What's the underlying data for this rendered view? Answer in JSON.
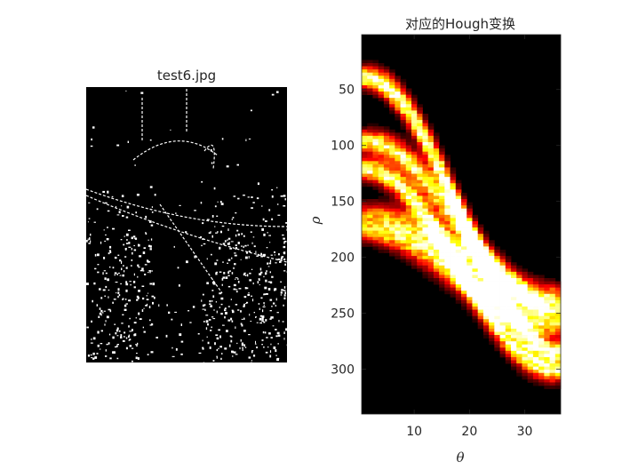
{
  "chart_data": [
    {
      "type": "image",
      "title": "test6.jpg",
      "description_values": {
        "style": "binary edge map",
        "colors": {
          "background": "#000000",
          "edge": "#ffffff"
        }
      }
    },
    {
      "type": "heatmap",
      "title": "对应的Hough变换",
      "xlabel": "θ",
      "ylabel": "ρ",
      "xlim": [
        0.5,
        36.5
      ],
      "ylim": [
        340,
        1
      ],
      "x_ticks": [
        10,
        20,
        30
      ],
      "y_ticks": [
        50,
        100,
        150,
        200,
        250,
        300
      ],
      "colormap": "hot",
      "columns": 36,
      "bands": [
        {
          "rho_start": 38,
          "rho_end": 283,
          "intensity": 1.0
        },
        {
          "rho_start": 95,
          "rho_end": 245,
          "intensity": 0.85
        },
        {
          "rho_start": 120,
          "rho_end": 300,
          "intensity": 0.9
        },
        {
          "rho_start": 160,
          "rho_end": 232,
          "intensity": 0.55
        },
        {
          "rho_start": 175,
          "rho_end": 260,
          "intensity": 0.7
        }
      ]
    }
  ]
}
